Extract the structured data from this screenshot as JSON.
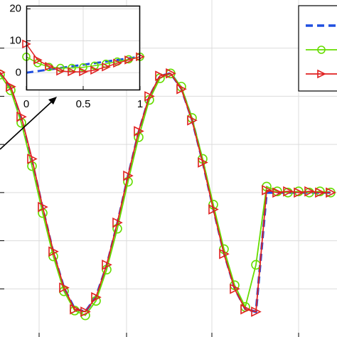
{
  "chart_data": [
    {
      "type": "line",
      "x": [
        0,
        0.15,
        0.3,
        0.45,
        0.6,
        0.75,
        0.9,
        1.05,
        1.2,
        1.35,
        1.5,
        1.65,
        1.8,
        1.95,
        2.1,
        2.25,
        2.4,
        2.55,
        2.7,
        2.85,
        3.0,
        3.15,
        3.3,
        3.45,
        3.6,
        3.75,
        3.9,
        4.05,
        4.2,
        4.35,
        4.5,
        4.65
      ],
      "series": [
        {
          "color": "#1f4fe0",
          "dash": true,
          "values": [
            0.991,
            0.866,
            0.609,
            0.259,
            -0.131,
            -0.5,
            -0.793,
            -0.966,
            -0.991,
            -0.866,
            -0.609,
            -0.259,
            0.131,
            0.5,
            0.793,
            0.966,
            0.991,
            0.866,
            0.609,
            0.259,
            -0.131,
            -0.5,
            -0.793,
            -0.966,
            -0.991,
            0,
            0,
            0,
            0,
            0,
            0,
            0
          ]
        },
        {
          "color": "#66dd00",
          "marker": "circle",
          "values": [
            0.98,
            0.85,
            0.58,
            0.22,
            -0.17,
            -0.53,
            -0.82,
            -0.98,
            -1.02,
            -0.9,
            -0.64,
            -0.3,
            0.09,
            0.46,
            0.77,
            0.95,
            0.99,
            0.88,
            0.62,
            0.28,
            -0.1,
            -0.47,
            -0.77,
            -0.95,
            -0.6,
            0.05,
            0.01,
            0.0,
            0.01,
            0.0,
            0.01,
            0.0
          ]
        },
        {
          "color": "#e02020",
          "marker": "triangle",
          "values": [
            1.0,
            0.88,
            0.63,
            0.28,
            -0.12,
            -0.49,
            -0.79,
            -0.97,
            -0.99,
            -0.87,
            -0.6,
            -0.25,
            0.14,
            0.51,
            0.8,
            0.97,
            0.99,
            0.86,
            0.6,
            0.25,
            -0.14,
            -0.51,
            -0.8,
            -0.97,
            -0.99,
            0.02,
            0.0,
            0.01,
            0.0,
            0.01,
            0.0,
            0.0
          ]
        }
      ],
      "xlim": [
        0,
        4.74
      ],
      "ylim": [
        -1.2,
        1.6
      ],
      "xticks": [
        0.55,
        1.78,
        2.98,
        4.2
      ],
      "yticks": [
        -0.8,
        -0.4,
        0,
        0.4,
        0.8,
        1.2
      ],
      "grid": true,
      "legend": "upper right"
    },
    {
      "type": "line",
      "x": [
        0,
        0.1,
        0.2,
        0.3,
        0.4,
        0.5,
        0.6,
        0.7,
        0.8,
        0.9,
        1
      ],
      "series": [
        {
          "color": "#1f4fe0",
          "dash": true,
          "values": [
            0,
            0.5,
            1,
            1.5,
            2,
            2.5,
            3,
            3.5,
            4,
            4.5,
            5
          ]
        },
        {
          "color": "#66dd00",
          "marker": "circle",
          "values": [
            5,
            3,
            1.8,
            1.5,
            1.5,
            1.7,
            2.2,
            2.8,
            3.5,
            4.2,
            5
          ]
        },
        {
          "color": "#e02020",
          "marker": "triangle",
          "values": [
            9,
            4,
            2,
            0.5,
            0.3,
            0.3,
            0.8,
            1.8,
            3,
            4,
            5
          ]
        }
      ],
      "xlim": [
        0,
        1
      ],
      "ylim": [
        -5.5,
        21
      ],
      "xticks": [
        0,
        0.5,
        1
      ],
      "yticks": [
        0,
        10,
        20
      ],
      "grid": true
    }
  ]
}
